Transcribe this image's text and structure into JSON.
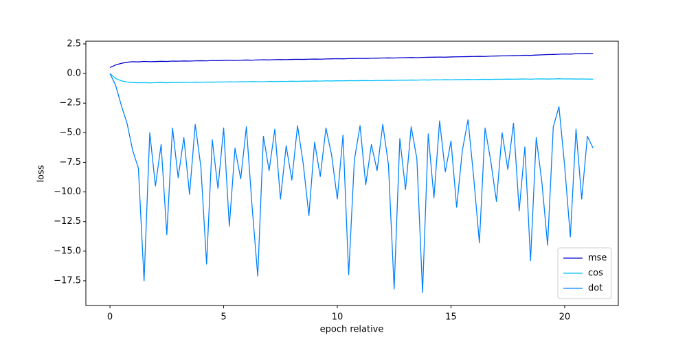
{
  "chart_data": {
    "type": "line",
    "xlabel": "epoch relative",
    "ylabel": "loss",
    "x": [
      0,
      0.25,
      0.5,
      0.75,
      1,
      1.25,
      1.5,
      1.75,
      2,
      2.25,
      2.5,
      2.75,
      3,
      3.25,
      3.5,
      3.75,
      4,
      4.25,
      4.5,
      4.75,
      5,
      5.25,
      5.5,
      5.75,
      6,
      6.25,
      6.5,
      6.75,
      7,
      7.25,
      7.5,
      7.75,
      8,
      8.25,
      8.5,
      8.75,
      9,
      9.25,
      9.5,
      9.75,
      10,
      10.25,
      10.5,
      10.75,
      11,
      11.25,
      11.5,
      11.75,
      12,
      12.25,
      12.5,
      12.75,
      13,
      13.25,
      13.5,
      13.75,
      14,
      14.25,
      14.5,
      14.75,
      15,
      15.25,
      15.5,
      15.75,
      16,
      16.25,
      16.5,
      16.75,
      17,
      17.25,
      17.5,
      17.75,
      18,
      18.25,
      18.5,
      18.75,
      19,
      19.25,
      19.5,
      19.75,
      20,
      20.25,
      20.5,
      20.75,
      21,
      21.25
    ],
    "series": [
      {
        "name": "mse",
        "color": "#0000cd",
        "values": [
          0.5,
          0.72,
          0.86,
          0.95,
          1.0,
          0.98,
          1.02,
          1.0,
          1.01,
          1.03,
          1.02,
          1.05,
          1.04,
          1.06,
          1.05,
          1.07,
          1.08,
          1.07,
          1.1,
          1.09,
          1.11,
          1.12,
          1.1,
          1.13,
          1.14,
          1.13,
          1.15,
          1.16,
          1.15,
          1.17,
          1.18,
          1.17,
          1.19,
          1.2,
          1.19,
          1.21,
          1.22,
          1.21,
          1.23,
          1.24,
          1.25,
          1.24,
          1.26,
          1.27,
          1.28,
          1.27,
          1.29,
          1.3,
          1.31,
          1.32,
          1.31,
          1.33,
          1.34,
          1.35,
          1.34,
          1.36,
          1.37,
          1.38,
          1.39,
          1.38,
          1.4,
          1.41,
          1.42,
          1.43,
          1.44,
          1.45,
          1.44,
          1.47,
          1.48,
          1.49,
          1.5,
          1.51,
          1.52,
          1.54,
          1.53,
          1.56,
          1.58,
          1.6,
          1.61,
          1.63,
          1.65,
          1.64,
          1.67,
          1.68,
          1.69,
          1.7
        ]
      },
      {
        "name": "cos",
        "color": "#00bfff",
        "values": [
          0,
          -0.42,
          -0.62,
          -0.72,
          -0.76,
          -0.78,
          -0.77,
          -0.79,
          -0.77,
          -0.76,
          -0.78,
          -0.75,
          -0.76,
          -0.74,
          -0.75,
          -0.73,
          -0.74,
          -0.72,
          -0.73,
          -0.71,
          -0.72,
          -0.7,
          -0.71,
          -0.69,
          -0.7,
          -0.68,
          -0.69,
          -0.7,
          -0.67,
          -0.68,
          -0.66,
          -0.67,
          -0.65,
          -0.66,
          -0.64,
          -0.65,
          -0.63,
          -0.64,
          -0.62,
          -0.63,
          -0.61,
          -0.62,
          -0.6,
          -0.61,
          -0.6,
          -0.59,
          -0.61,
          -0.58,
          -0.59,
          -0.57,
          -0.58,
          -0.56,
          -0.57,
          -0.55,
          -0.56,
          -0.54,
          -0.55,
          -0.53,
          -0.54,
          -0.52,
          -0.53,
          -0.51,
          -0.52,
          -0.5,
          -0.51,
          -0.5,
          -0.49,
          -0.5,
          -0.48,
          -0.49,
          -0.47,
          -0.48,
          -0.47,
          -0.46,
          -0.48,
          -0.46,
          -0.45,
          -0.47,
          -0.46,
          -0.44,
          -0.46,
          -0.45,
          -0.47,
          -0.46,
          -0.47,
          -0.48
        ]
      },
      {
        "name": "dot",
        "color": "#0080ff",
        "values": [
          0,
          -1.0,
          -2.7,
          -4.2,
          -6.5,
          -8.0,
          -17.5,
          -5.0,
          -9.5,
          -6.0,
          -13.6,
          -4.6,
          -8.8,
          -5.4,
          -10.2,
          -4.3,
          -7.9,
          -16.1,
          -5.6,
          -9.7,
          -4.6,
          -12.9,
          -6.3,
          -8.9,
          -4.5,
          -11.2,
          -17.1,
          -5.3,
          -8.2,
          -4.7,
          -10.6,
          -6.1,
          -9.0,
          -4.4,
          -7.6,
          -12.0,
          -5.8,
          -8.7,
          -4.6,
          -6.9,
          -10.6,
          -5.2,
          -17.0,
          -7.3,
          -4.4,
          -9.4,
          -6.0,
          -8.2,
          -4.3,
          -7.7,
          -18.2,
          -5.5,
          -9.8,
          -4.5,
          -7.2,
          -18.5,
          -5.1,
          -10.5,
          -4.0,
          -8.3,
          -5.7,
          -11.3,
          -6.5,
          -3.9,
          -8.8,
          -14.3,
          -4.6,
          -7.4,
          -10.8,
          -5.0,
          -8.1,
          -4.2,
          -11.6,
          -6.2,
          -15.8,
          -5.4,
          -9.2,
          -14.5,
          -4.5,
          -2.8,
          -7.8,
          -13.8,
          -4.7,
          -10.6,
          -5.3,
          -6.3
        ]
      }
    ],
    "xlim": [
      -1.06,
      22.36
    ],
    "ylim": [
      -19.59,
      2.73
    ],
    "xticks": [
      0,
      5,
      10,
      15,
      20
    ],
    "yticks": [
      2.5,
      {
        "value": 0,
        "label": "0.0"
      },
      {
        "value": -2.5,
        "label": "−2.5"
      },
      {
        "value": -5,
        "label": "−5.0"
      },
      {
        "value": -7.5,
        "label": "−7.5"
      },
      {
        "value": -10,
        "label": "−10.0"
      },
      {
        "value": -12.5,
        "label": "−12.5"
      },
      {
        "value": -15,
        "label": "−15.0"
      },
      {
        "value": -17.5,
        "label": "−17.5"
      }
    ],
    "legend": "lower right"
  }
}
